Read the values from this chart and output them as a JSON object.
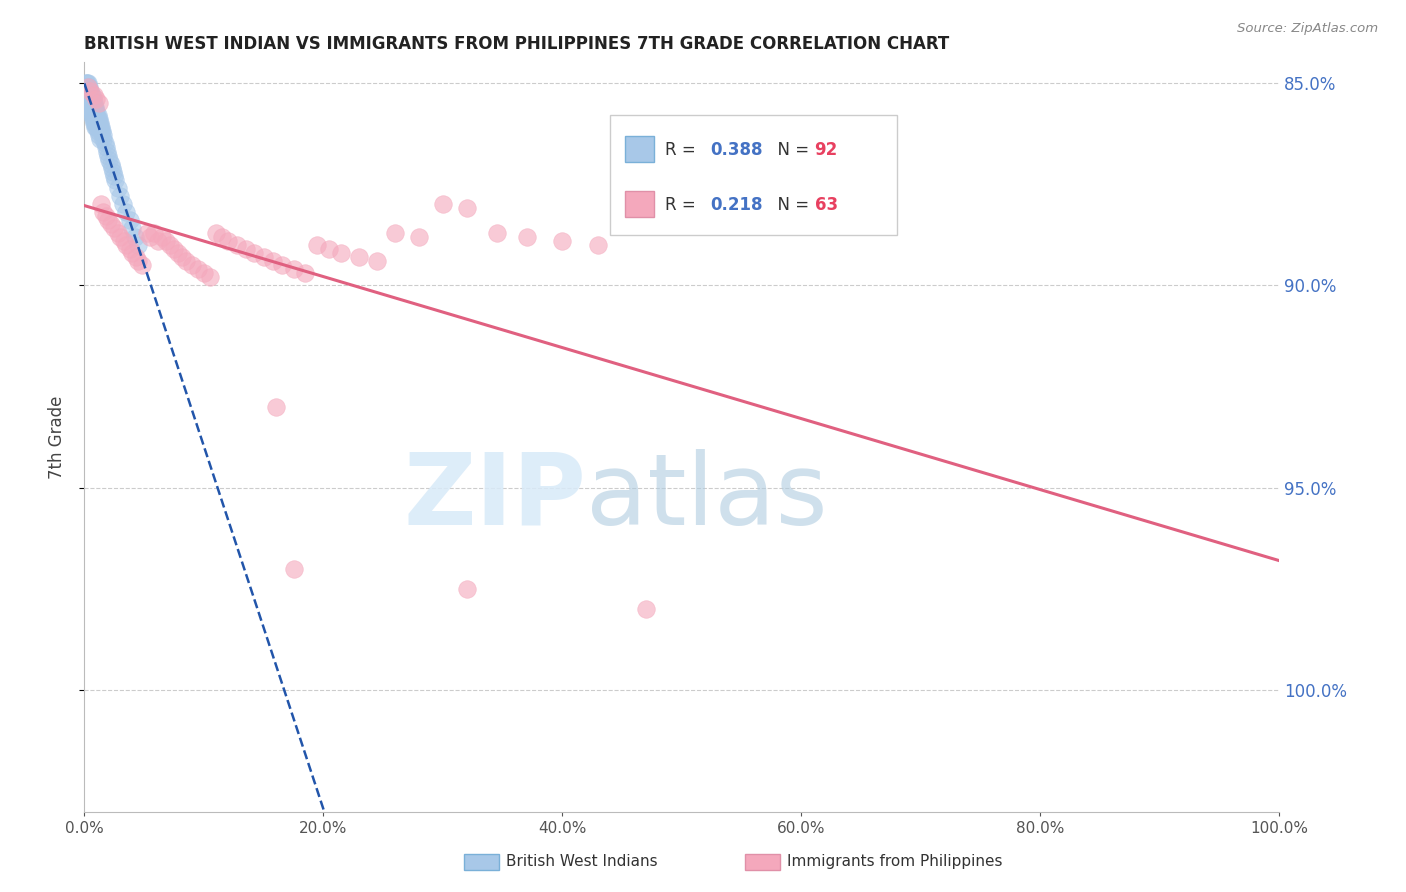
{
  "title": "BRITISH WEST INDIAN VS IMMIGRANTS FROM PHILIPPINES 7TH GRADE CORRELATION CHART",
  "source": "Source: ZipAtlas.com",
  "ylabel": "7th Grade",
  "blue_color": "#a8c8e8",
  "pink_color": "#f4a8bc",
  "blue_line_color": "#2255aa",
  "pink_line_color": "#e06080",
  "blue_R": 0.388,
  "blue_N": 92,
  "pink_R": 0.218,
  "pink_N": 63,
  "xlim": [
    0.0,
    1.0
  ],
  "ylim": [
    0.82,
    1.005
  ],
  "yticks": [
    0.85,
    0.9,
    0.95,
    1.0
  ],
  "ytick_labels": [
    "85.0%",
    "90.0%",
    "95.0%",
    "100.0%"
  ],
  "xticks": [
    0.0,
    0.2,
    0.4,
    0.6,
    0.8,
    1.0
  ],
  "xtick_labels": [
    "0.0%",
    "20.0%",
    "40.0%",
    "60.0%",
    "80.0%",
    "100.0%"
  ],
  "blue_scatter_x": [
    0.001,
    0.001,
    0.002,
    0.002,
    0.002,
    0.002,
    0.003,
    0.003,
    0.003,
    0.003,
    0.003,
    0.003,
    0.004,
    0.004,
    0.004,
    0.004,
    0.004,
    0.005,
    0.005,
    0.005,
    0.005,
    0.005,
    0.006,
    0.006,
    0.006,
    0.006,
    0.007,
    0.007,
    0.007,
    0.007,
    0.008,
    0.008,
    0.008,
    0.008,
    0.009,
    0.009,
    0.009,
    0.01,
    0.01,
    0.01,
    0.011,
    0.011,
    0.011,
    0.012,
    0.012,
    0.013,
    0.013,
    0.014,
    0.014,
    0.015,
    0.016,
    0.016,
    0.017,
    0.018,
    0.019,
    0.02,
    0.021,
    0.022,
    0.023,
    0.024,
    0.025,
    0.026,
    0.028,
    0.03,
    0.032,
    0.035,
    0.038,
    0.04,
    0.042,
    0.045,
    0.001,
    0.001,
    0.002,
    0.002,
    0.003,
    0.003,
    0.004,
    0.004,
    0.005,
    0.005,
    0.006,
    0.006,
    0.007,
    0.007,
    0.008,
    0.008,
    0.009,
    0.009,
    0.01,
    0.011,
    0.012,
    0.013
  ],
  "blue_scatter_y": [
    1.0,
    0.999,
    1.0,
    0.999,
    0.998,
    0.997,
    1.0,
    0.999,
    0.998,
    0.997,
    0.996,
    0.995,
    0.999,
    0.998,
    0.997,
    0.996,
    0.995,
    0.998,
    0.997,
    0.996,
    0.995,
    0.994,
    0.997,
    0.996,
    0.995,
    0.994,
    0.996,
    0.995,
    0.994,
    0.993,
    0.995,
    0.994,
    0.993,
    0.992,
    0.994,
    0.993,
    0.992,
    0.993,
    0.992,
    0.991,
    0.992,
    0.991,
    0.99,
    0.991,
    0.99,
    0.99,
    0.989,
    0.989,
    0.988,
    0.988,
    0.987,
    0.986,
    0.985,
    0.984,
    0.983,
    0.982,
    0.981,
    0.98,
    0.979,
    0.978,
    0.977,
    0.976,
    0.974,
    0.972,
    0.97,
    0.968,
    0.966,
    0.964,
    0.962,
    0.96,
    0.998,
    0.997,
    0.997,
    0.996,
    0.996,
    0.995,
    0.995,
    0.994,
    0.994,
    0.993,
    0.993,
    0.992,
    0.992,
    0.991,
    0.991,
    0.99,
    0.99,
    0.989,
    0.989,
    0.988,
    0.987,
    0.986
  ],
  "pink_scatter_x": [
    0.003,
    0.005,
    0.008,
    0.01,
    0.012,
    0.014,
    0.016,
    0.018,
    0.02,
    0.022,
    0.025,
    0.028,
    0.03,
    0.033,
    0.035,
    0.038,
    0.04,
    0.043,
    0.045,
    0.048,
    0.052,
    0.055,
    0.058,
    0.062,
    0.065,
    0.068,
    0.072,
    0.075,
    0.078,
    0.082,
    0.085,
    0.09,
    0.095,
    0.1,
    0.105,
    0.11,
    0.115,
    0.12,
    0.128,
    0.135,
    0.142,
    0.15,
    0.158,
    0.165,
    0.175,
    0.185,
    0.195,
    0.205,
    0.215,
    0.23,
    0.245,
    0.26,
    0.28,
    0.3,
    0.32,
    0.345,
    0.37,
    0.4,
    0.43,
    0.47,
    0.16,
    0.175,
    0.32
  ],
  "pink_scatter_y": [
    0.999,
    0.998,
    0.997,
    0.996,
    0.995,
    0.97,
    0.968,
    0.967,
    0.966,
    0.965,
    0.964,
    0.963,
    0.962,
    0.961,
    0.96,
    0.959,
    0.958,
    0.957,
    0.956,
    0.955,
    0.963,
    0.962,
    0.963,
    0.961,
    0.962,
    0.961,
    0.96,
    0.959,
    0.958,
    0.957,
    0.956,
    0.955,
    0.954,
    0.953,
    0.952,
    0.963,
    0.962,
    0.961,
    0.96,
    0.959,
    0.958,
    0.957,
    0.956,
    0.955,
    0.954,
    0.953,
    0.96,
    0.959,
    0.958,
    0.957,
    0.956,
    0.963,
    0.962,
    0.97,
    0.969,
    0.963,
    0.962,
    0.961,
    0.96,
    0.87,
    0.92,
    0.88,
    0.875
  ]
}
